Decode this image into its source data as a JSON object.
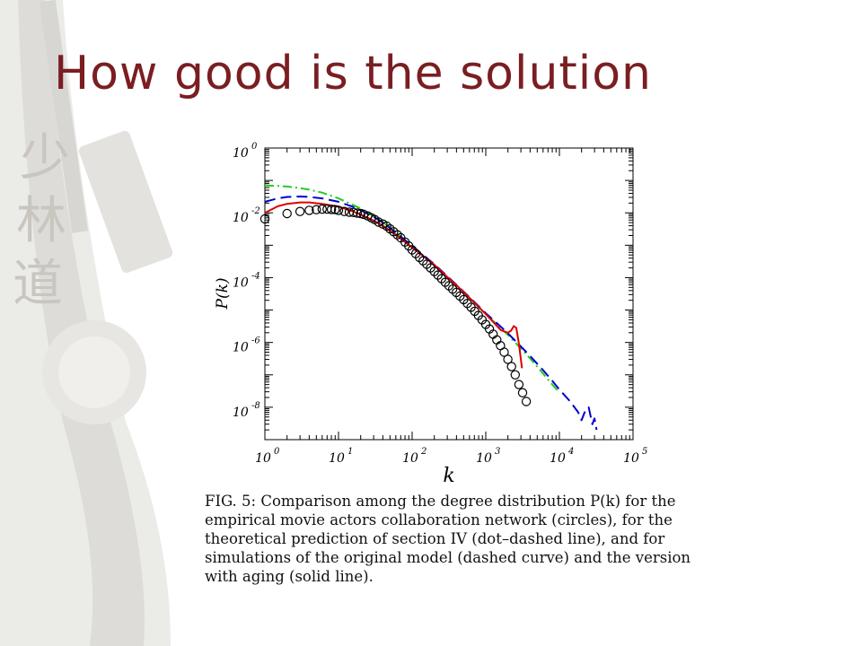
{
  "slide": {
    "title": "How good is the solution",
    "caption": "FIG. 5: Comparison among the degree distribution P(k) for the empirical movie actors collaboration network (circles), for the theoretical prediction of section IV (dot–dashed line), and for simulations of the original model (dashed curve) and the version with aging (solid line)."
  },
  "colors": {
    "title": "#7a1e22",
    "theory": "#22cc22",
    "original_model": "#0000cc",
    "aging_model": "#dd0000",
    "empirical": "#000000"
  },
  "chart_data": {
    "type": "line",
    "title": "",
    "xlabel": "k",
    "ylabel": "P(k)",
    "x_scale": "log",
    "y_scale": "log",
    "xlim": [
      1,
      100000
    ],
    "ylim": [
      1e-09,
      1
    ],
    "x_ticks": [
      {
        "base": "10",
        "exp": "0"
      },
      {
        "base": "10",
        "exp": "1"
      },
      {
        "base": "10",
        "exp": "2"
      },
      {
        "base": "10",
        "exp": "3"
      },
      {
        "base": "10",
        "exp": "4"
      },
      {
        "base": "10",
        "exp": "5"
      }
    ],
    "y_ticks": [
      {
        "base": "10",
        "exp": "0"
      },
      {
        "base": "10",
        "exp": "-2"
      },
      {
        "base": "10",
        "exp": "-4"
      },
      {
        "base": "10",
        "exp": "-6"
      },
      {
        "base": "10",
        "exp": "-8"
      }
    ],
    "series": [
      {
        "key": "empirical",
        "style": "circles",
        "x": [
          1,
          2,
          3,
          4,
          5,
          6,
          7,
          8,
          9,
          10,
          12,
          14,
          16,
          18,
          20,
          22,
          25,
          28,
          31,
          35,
          40,
          45,
          50,
          56,
          63,
          70,
          80,
          90,
          100,
          112,
          126,
          141,
          158,
          178,
          200,
          224,
          251,
          282,
          316,
          355,
          398,
          447,
          501,
          562,
          631,
          708,
          794,
          891,
          1000,
          1122,
          1259,
          1413,
          1585,
          1778,
          1995,
          2239,
          2512,
          2818,
          3162,
          3548
        ],
        "y": [
          0.0065,
          0.0095,
          0.011,
          0.012,
          0.0125,
          0.013,
          0.013,
          0.0128,
          0.0126,
          0.012,
          0.011,
          0.0105,
          0.0103,
          0.0098,
          0.0095,
          0.009,
          0.008,
          0.007,
          0.0062,
          0.0052,
          0.0045,
          0.0039,
          0.0032,
          0.0026,
          0.0021,
          0.0017,
          0.00125,
          0.00095,
          0.00072,
          0.00055,
          0.00042,
          0.00033,
          0.00026,
          0.0002,
          0.000155,
          0.00012,
          9.3e-05,
          7.2e-05,
          5.6e-05,
          4.4e-05,
          3.5e-05,
          2.7e-05,
          2.1e-05,
          1.6e-05,
          1.22e-05,
          9.2e-06,
          6.8e-06,
          5e-06,
          3.6e-06,
          2.6e-06,
          1.8e-06,
          1.2e-06,
          8e-07,
          5e-07,
          3e-07,
          1.8e-07,
          1e-07,
          5e-08,
          2.8e-08,
          1.5e-08
        ]
      },
      {
        "key": "theory",
        "style": "dot-dashed",
        "x": [
          1,
          1.5,
          2,
          3,
          4,
          6,
          10,
          15,
          20,
          30,
          40,
          60,
          100,
          150,
          200,
          300,
          400,
          600,
          1000,
          1500,
          2000,
          3000,
          4000,
          6000,
          8000,
          10000
        ],
        "y": [
          0.07,
          0.068,
          0.065,
          0.058,
          0.052,
          0.042,
          0.028,
          0.0185,
          0.0135,
          0.008,
          0.0052,
          0.0025,
          0.0009,
          0.00042,
          0.00024,
          0.0001,
          5.5e-05,
          2.3e-05,
          7.5e-06,
          3.2e-06,
          1.7e-06,
          6.5e-07,
          3.2e-07,
          1.1e-07,
          5e-08,
          2.8e-08
        ]
      },
      {
        "key": "original_model",
        "style": "dashed",
        "x": [
          1,
          1.5,
          2,
          3,
          4,
          6,
          10,
          15,
          20,
          30,
          40,
          60,
          100,
          150,
          200,
          300,
          400,
          600,
          1000,
          1500,
          2000,
          3000,
          4000,
          6000,
          8000,
          10000,
          14000,
          18000,
          20000,
          22000,
          25000,
          28000,
          30000,
          32000
        ],
        "y": [
          0.022,
          0.028,
          0.031,
          0.032,
          0.031,
          0.028,
          0.022,
          0.016,
          0.012,
          0.0075,
          0.005,
          0.0025,
          0.00095,
          0.00045,
          0.00026,
          0.00011,
          6e-05,
          2.5e-05,
          8e-06,
          3.5e-06,
          1.9e-06,
          7.5e-07,
          3.8e-07,
          1.4e-07,
          6.5e-08,
          3.5e-08,
          1.5e-08,
          7e-09,
          4e-09,
          7e-09,
          1e-08,
          3e-09,
          4.5e-09,
          2e-09
        ]
      },
      {
        "key": "aging_model",
        "style": "solid",
        "x": [
          1,
          1.5,
          2,
          3,
          4,
          6,
          10,
          15,
          20,
          30,
          40,
          60,
          100,
          150,
          200,
          300,
          400,
          600,
          1000,
          1300,
          1600,
          2000,
          2200,
          2400,
          2600,
          2800,
          3000,
          3100
        ],
        "y": [
          0.01,
          0.016,
          0.019,
          0.021,
          0.021,
          0.019,
          0.0155,
          0.0115,
          0.0088,
          0.0058,
          0.004,
          0.0021,
          0.00085,
          0.00042,
          0.00025,
          0.000105,
          5.8e-05,
          2.4e-05,
          7.5e-06,
          4e-06,
          2.4e-06,
          2e-06,
          2.3e-06,
          3.2e-06,
          2.8e-06,
          1e-06,
          3e-07,
          1.6e-07
        ]
      }
    ]
  }
}
